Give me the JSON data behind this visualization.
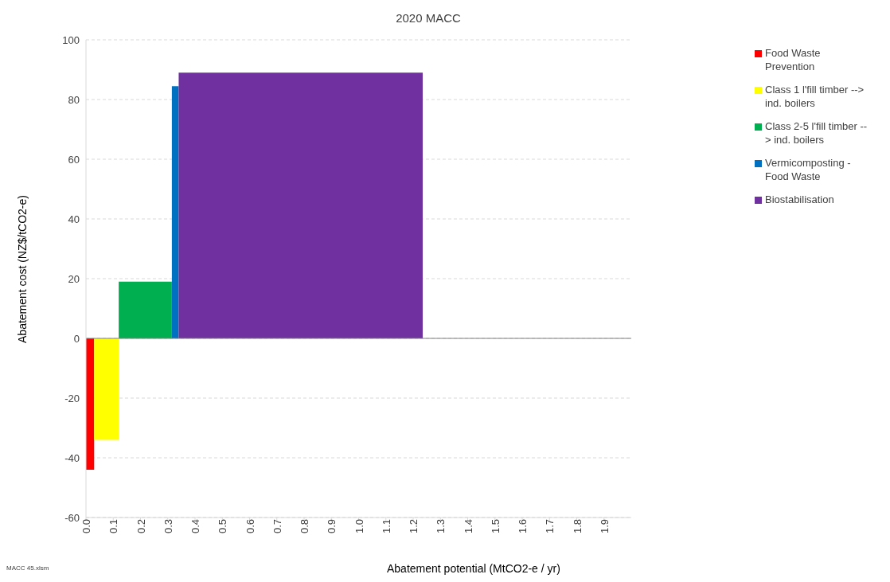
{
  "chart_data": {
    "type": "area",
    "title": "2020 MACC",
    "xlabel": "Abatement potential (MtCO2-e / yr)",
    "ylabel": "Abatement cost (NZ$/tCO2-e)",
    "series": [
      {
        "name": "Food Waste Prevention",
        "color": "#ff0000",
        "x": [
          0,
          0.03
        ],
        "values": [
          -44,
          -44
        ]
      },
      {
        "name": "Class 1 l'fill timber --> ind. boilers",
        "color": "#ffff00",
        "x": [
          0.03,
          0.12
        ],
        "values": [
          -34,
          -34
        ]
      },
      {
        "name": "Class 2-5 l'fill timber --> ind. boilers",
        "color": "#00b050",
        "x": [
          0.12,
          0.315
        ],
        "values": [
          19,
          19
        ]
      },
      {
        "name": "Vermicomposting - Food Waste",
        "color": "#0070c0",
        "x": [
          0.315,
          0.34
        ],
        "values": [
          84.5,
          84.5
        ]
      },
      {
        "name": "Biostabilisation",
        "color": "#7030a0",
        "x": [
          0.34,
          1.235
        ],
        "values": [
          89,
          89
        ]
      }
    ],
    "xlim": [
      0,
      2
    ],
    "xticks": [
      {
        "value": 0,
        "label": "0.0"
      },
      {
        "value": 0.1,
        "label": "0.1"
      },
      {
        "value": 0.2,
        "label": "0.2"
      },
      {
        "value": 0.3,
        "label": "0.3"
      },
      {
        "value": 0.4,
        "label": "0.4"
      },
      {
        "value": 0.5,
        "label": "0.5"
      },
      {
        "value": 0.6,
        "label": "0.6"
      },
      {
        "value": 0.7,
        "label": "0.7"
      },
      {
        "value": 0.8,
        "label": "0.8"
      },
      {
        "value": 0.9,
        "label": "0.9"
      },
      {
        "value": 1,
        "label": "1.0"
      },
      {
        "value": 1.1,
        "label": "1.1"
      },
      {
        "value": 1.2,
        "label": "1.2"
      },
      {
        "value": 1.3,
        "label": "1.3"
      },
      {
        "value": 1.4,
        "label": "1.4"
      },
      {
        "value": 1.5,
        "label": "1.5"
      },
      {
        "value": 1.6,
        "label": "1.6"
      },
      {
        "value": 1.7,
        "label": "1.7"
      },
      {
        "value": 1.8,
        "label": "1.8"
      },
      {
        "value": 1.9,
        "label": "1.9"
      }
    ],
    "ylim": [
      -60,
      100
    ],
    "yticks": [
      -60,
      -40,
      -20,
      0,
      20,
      40,
      60,
      80,
      100
    ],
    "grid": "y",
    "legend": "top right",
    "ref_lines": [
      {
        "axis": "y",
        "value": 0,
        "color": "#808080"
      }
    ],
    "annotations": [
      "MACC 45.xlsm"
    ]
  }
}
